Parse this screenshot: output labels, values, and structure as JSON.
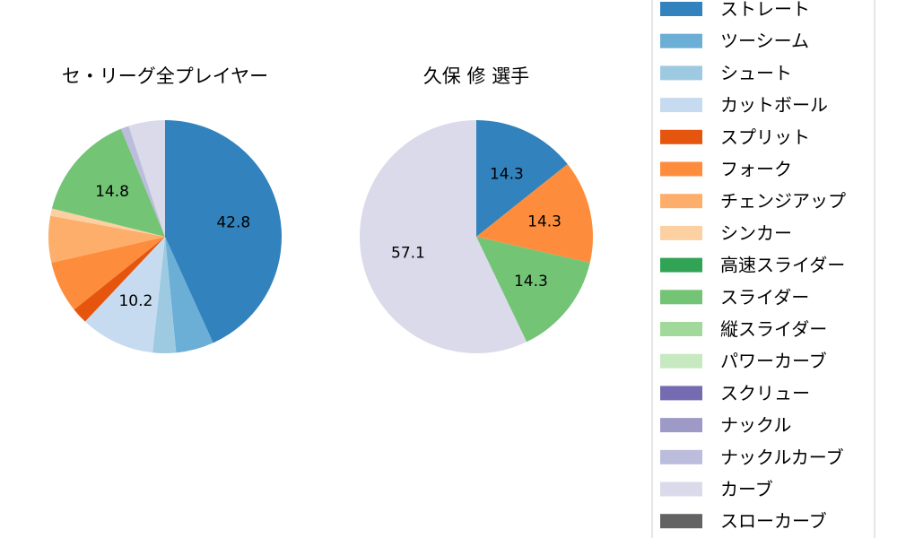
{
  "chart_data": [
    {
      "type": "pie",
      "title": "セ・リーグ全プレイヤー",
      "slices": [
        {
          "label": "ストレート",
          "value": 42.8,
          "color": "#3182bd",
          "show_label": true
        },
        {
          "label": "ツーシーム",
          "value": 5.2,
          "color": "#6baed6",
          "show_label": false
        },
        {
          "label": "シュート",
          "value": 3.2,
          "color": "#9ecae1",
          "show_label": false
        },
        {
          "label": "カットボール",
          "value": 10.2,
          "color": "#c6dbef",
          "show_label": true
        },
        {
          "label": "スプリット",
          "value": 2.2,
          "color": "#e6550d",
          "show_label": false
        },
        {
          "label": "フォーク",
          "value": 7.1,
          "color": "#fd8d3c",
          "show_label": false
        },
        {
          "label": "チェンジアップ",
          "value": 6.4,
          "color": "#fdae6b",
          "show_label": false
        },
        {
          "label": "シンカー",
          "value": 1.0,
          "color": "#fdd0a2",
          "show_label": false
        },
        {
          "label": "スライダー",
          "value": 14.8,
          "color": "#74c476",
          "show_label": true
        },
        {
          "label": "ナックルカーブ",
          "value": 1.1,
          "color": "#bcbddc",
          "show_label": false
        },
        {
          "label": "カーブ",
          "value": 5.0,
          "color": "#dadaeb",
          "show_label": false
        }
      ]
    },
    {
      "type": "pie",
      "title": "久保 修 選手",
      "slices": [
        {
          "label": "ストレート",
          "value": 14.3,
          "color": "#3182bd",
          "show_label": true
        },
        {
          "label": "フォーク",
          "value": 14.3,
          "color": "#fd8d3c",
          "show_label": true
        },
        {
          "label": "スライダー",
          "value": 14.3,
          "color": "#74c476",
          "show_label": true
        },
        {
          "label": "カーブ",
          "value": 57.1,
          "color": "#dadaeb",
          "show_label": true
        }
      ]
    }
  ],
  "legend": {
    "placement": "right",
    "items": [
      {
        "label": "ストレート",
        "color": "#3182bd"
      },
      {
        "label": "ツーシーム",
        "color": "#6baed6"
      },
      {
        "label": "シュート",
        "color": "#9ecae1"
      },
      {
        "label": "カットボール",
        "color": "#c6dbef"
      },
      {
        "label": "スプリット",
        "color": "#e6550d"
      },
      {
        "label": "フォーク",
        "color": "#fd8d3c"
      },
      {
        "label": "チェンジアップ",
        "color": "#fdae6b"
      },
      {
        "label": "シンカー",
        "color": "#fdd0a2"
      },
      {
        "label": "高速スライダー",
        "color": "#31a354"
      },
      {
        "label": "スライダー",
        "color": "#74c476"
      },
      {
        "label": "縦スライダー",
        "color": "#a1d99b"
      },
      {
        "label": "パワーカーブ",
        "color": "#c7e9c0"
      },
      {
        "label": "スクリュー",
        "color": "#756bb1"
      },
      {
        "label": "ナックル",
        "color": "#9e9ac8"
      },
      {
        "label": "ナックルカーブ",
        "color": "#bcbddc"
      },
      {
        "label": "カーブ",
        "color": "#dadaeb"
      },
      {
        "label": "スローカーブ",
        "color": "#636363"
      }
    ]
  }
}
